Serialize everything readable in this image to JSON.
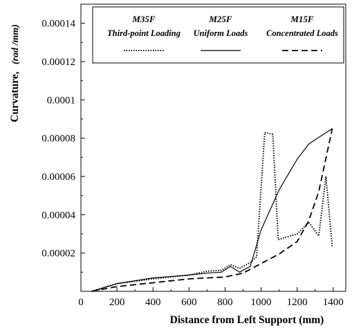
{
  "chart_data": {
    "type": "line",
    "xlabel": "Distance from Left Support (mm)",
    "ylabel": "Curvature,",
    "ylabel_unit": "(rad /mm)",
    "xlim": [
      0,
      1400
    ],
    "ylim": [
      0,
      0.00015
    ],
    "x_ticks": [
      "0",
      "200",
      "400",
      "600",
      "800",
      "1000",
      "1200",
      "1400"
    ],
    "y_ticks": [
      "0.00002",
      "0.00004",
      "0.00006",
      "0.00008",
      "0.0001",
      "0.00012",
      "0.00014"
    ],
    "grid": false,
    "legend_position": "top",
    "series": [
      {
        "name": "M35F",
        "description": "Third-point Loading",
        "style": "dotted",
        "color": "#000000",
        "x": [
          60,
          200,
          400,
          600,
          700,
          780,
          830,
          880,
          940,
          975,
          1020,
          1065,
          1095,
          1200,
          1265,
          1320,
          1360,
          1395
        ],
        "y": [
          0,
          4e-06,
          6.5e-06,
          8.5e-06,
          1.05e-05,
          1.1e-05,
          1.4e-05,
          1.2e-05,
          1.5e-05,
          1.8e-05,
          8.3e-05,
          8.2e-05,
          2.7e-05,
          3e-05,
          3.6e-05,
          2.9e-05,
          6e-05,
          2.3e-05
        ]
      },
      {
        "name": "M25F",
        "description": "Uniform Loads",
        "style": "solid",
        "color": "#000000",
        "x": [
          60,
          200,
          400,
          600,
          700,
          780,
          830,
          880,
          940,
          1000,
          1100,
          1200,
          1265,
          1395
        ],
        "y": [
          0,
          4e-06,
          7e-06,
          8.5e-06,
          9.5e-06,
          1e-05,
          1.3e-05,
          1e-05,
          1.3e-05,
          3.2e-05,
          5.3e-05,
          6.9e-05,
          7.7e-05,
          8.5e-05
        ]
      },
      {
        "name": "M15F",
        "description": "Concentrated Loads",
        "style": "dashed",
        "color": "#000000",
        "x": [
          60,
          200,
          400,
          600,
          800,
          900,
          1000,
          1100,
          1200,
          1265,
          1320,
          1395
        ],
        "y": [
          0,
          2.5e-06,
          4.5e-06,
          6.5e-06,
          7.5e-06,
          9.5e-06,
          1.45e-05,
          1.95e-05,
          2.6e-05,
          3.7e-05,
          5.2e-05,
          8.5e-05
        ]
      }
    ]
  }
}
